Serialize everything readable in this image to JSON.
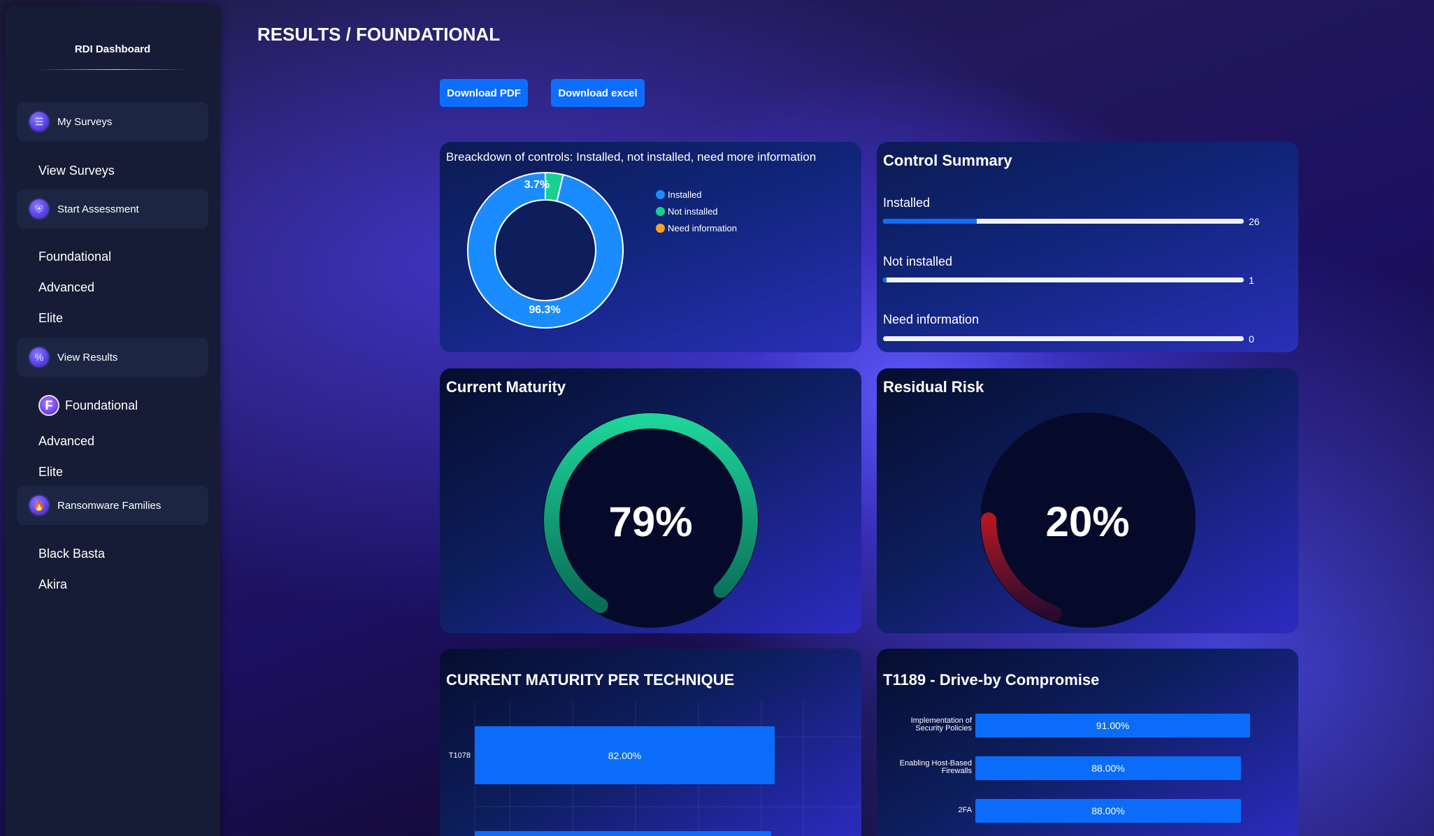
{
  "sidebar": {
    "brand": "RDI Dashboard",
    "sections": [
      {
        "label": "My Surveys",
        "icon": "list-icon"
      },
      {
        "label": "Start Assessment",
        "icon": "shield-icon"
      },
      {
        "label": "View Results",
        "icon": "percent-icon"
      },
      {
        "label": "Ransomware Families",
        "icon": "flame-icon"
      }
    ],
    "surveys": [
      "View Surveys"
    ],
    "assessment": [
      "Foundational",
      "Advanced",
      "Elite"
    ],
    "results": {
      "active_badge": "F",
      "items": [
        "Foundational",
        "Advanced",
        "Elite"
      ]
    },
    "families": [
      "Black Basta",
      "Akira"
    ]
  },
  "header": {
    "title": "RESULTS / FOUNDATIONAL",
    "download_pdf": "Download PDF",
    "download_excel": "Download excel"
  },
  "breakdown": {
    "title": "Breackdown of controls: Installed, not installed, need more information",
    "legend": [
      {
        "label": "Installed",
        "color": "#1a8cff"
      },
      {
        "label": "Not installed",
        "color": "#16d18f"
      },
      {
        "label": "Need information",
        "color": "#f5a623"
      }
    ],
    "label_installed": "96.3%",
    "label_not_installed": "3.7%"
  },
  "chart_data": [
    {
      "type": "pie",
      "title": "Breackdown of controls: Installed, not installed, need more information",
      "categories": [
        "Installed",
        "Not installed",
        "Need information"
      ],
      "values": [
        96.3,
        3.7,
        0
      ],
      "legend": "right"
    },
    {
      "type": "bar",
      "title": "CURRENT MATURITY PER TECHNIQUE",
      "categories": [
        "T1078"
      ],
      "values": [
        82.0
      ],
      "value_labels": [
        "82.00%"
      ]
    },
    {
      "type": "bar",
      "title": "T1189 - Drive-by Compromise",
      "categories": [
        "Implementation of Security Policies",
        "Enabling Host-Based Firewalls",
        "2FA"
      ],
      "values": [
        91.0,
        88.0,
        88.0
      ],
      "value_labels": [
        "91.00%",
        "88.00%",
        "88.00%"
      ]
    }
  ],
  "control_summary": {
    "title": "Control Summary",
    "rows": [
      {
        "label": "Installed",
        "value": "26",
        "count": 26
      },
      {
        "label": "Not installed",
        "value": "1",
        "count": 1
      },
      {
        "label": "Need information",
        "value": "0",
        "count": 0
      }
    ],
    "fill_fraction": [
      0.26,
      0.01,
      0.0
    ]
  },
  "maturity": {
    "title": "Current Maturity",
    "value_text": "79%",
    "value": 79,
    "color": "#16d18f"
  },
  "risk": {
    "title": "Residual Risk",
    "value_text": "20%",
    "value": 20,
    "color": "#b01822"
  },
  "technique": {
    "title": "CURRENT MATURITY PER TECHNIQUE",
    "bars": [
      {
        "label": "T1078",
        "value_text": "82.00%"
      }
    ]
  },
  "drive_by": {
    "title": "T1189 - Drive-by Compromise",
    "bars": [
      {
        "label_line1": "Implementation of",
        "label_line2": "Security Policies",
        "value_text": "91.00%"
      },
      {
        "label_line1": "Enabling Host-Based",
        "label_line2": "Firewalls",
        "value_text": "88.00%"
      },
      {
        "label_line1": "2FA",
        "label_line2": "",
        "value_text": "88.00%"
      }
    ]
  }
}
